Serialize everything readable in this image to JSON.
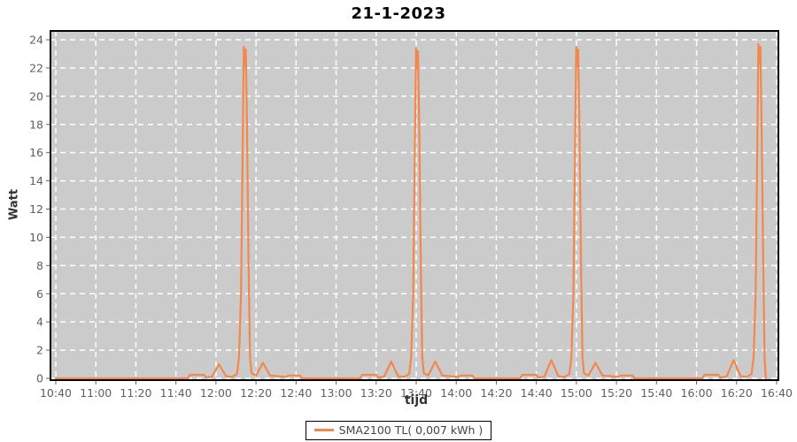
{
  "chart_data": {
    "type": "line",
    "title": "21-1-2023",
    "xlabel": "tijd",
    "ylabel": "Watt",
    "ylim": [
      0,
      24
    ],
    "y_ticks": [
      0,
      2,
      4,
      6,
      8,
      10,
      12,
      14,
      16,
      18,
      20,
      22,
      24
    ],
    "x_range_minutes": [
      640,
      1000
    ],
    "x_ticks": [
      {
        "label": "10:40",
        "t": 640
      },
      {
        "label": "11:00",
        "t": 660
      },
      {
        "label": "11:20",
        "t": 680
      },
      {
        "label": "11:40",
        "t": 700
      },
      {
        "label": "12:00",
        "t": 720
      },
      {
        "label": "12:20",
        "t": 740
      },
      {
        "label": "12:40",
        "t": 760
      },
      {
        "label": "13:00",
        "t": 780
      },
      {
        "label": "13:20",
        "t": 800
      },
      {
        "label": "13:40",
        "t": 820
      },
      {
        "label": "14:00",
        "t": 840
      },
      {
        "label": "14:20",
        "t": 860
      },
      {
        "label": "14:40",
        "t": 880
      },
      {
        "label": "15:00",
        "t": 900
      },
      {
        "label": "15:20",
        "t": 920
      },
      {
        "label": "15:40",
        "t": 940
      },
      {
        "label": "16:00",
        "t": 960
      },
      {
        "label": "16:20",
        "t": 980
      },
      {
        "label": "16:40",
        "t": 1000
      }
    ],
    "grid": true,
    "legend": {
      "label": "SMA2100 TL( 0,007 kWh )",
      "position": "bottom-center"
    },
    "colors": {
      "series": "#F4874D",
      "plot_background": "#CBCBCB",
      "gridline": "#FFFFFF",
      "plot_border": "#000000",
      "tick": "#666666",
      "tick_label": "#5F5F5F",
      "axis_title": "#333333",
      "title": "#000000",
      "legend_text": "#444444",
      "legend_border": "#000000",
      "page_background": "#FFFFFF"
    },
    "series": [
      {
        "name": "SMA2100 TL( 0,007 kWh )",
        "points": [
          [
            640,
            0
          ],
          [
            706,
            0
          ],
          [
            707,
            0.25
          ],
          [
            714,
            0.25
          ],
          [
            715,
            0.06
          ],
          [
            718,
            0.12
          ],
          [
            721.5,
            1.0
          ],
          [
            725,
            0.15
          ],
          [
            728,
            0.1
          ],
          [
            730.5,
            0.3
          ],
          [
            731.5,
            1.5
          ],
          [
            732.5,
            6
          ],
          [
            733.3,
            16
          ],
          [
            733.9,
            23.5
          ],
          [
            734.4,
            22.2
          ],
          [
            734.9,
            23.3
          ],
          [
            735.5,
            18
          ],
          [
            736.3,
            8
          ],
          [
            737,
            1.5
          ],
          [
            737.8,
            0.35
          ],
          [
            740,
            0.2
          ],
          [
            743.5,
            1.1
          ],
          [
            747,
            0.2
          ],
          [
            755,
            0.1
          ],
          [
            756,
            0.2
          ],
          [
            762,
            0.2
          ],
          [
            763,
            0
          ],
          [
            792,
            0
          ],
          [
            793,
            0.25
          ],
          [
            800,
            0.25
          ],
          [
            801,
            0.06
          ],
          [
            804,
            0.12
          ],
          [
            807.5,
            1.2
          ],
          [
            811,
            0.15
          ],
          [
            814,
            0.1
          ],
          [
            816.5,
            0.3
          ],
          [
            817.5,
            1.5
          ],
          [
            818.5,
            6
          ],
          [
            819.3,
            16
          ],
          [
            819.9,
            23.4
          ],
          [
            820.4,
            22.0
          ],
          [
            820.9,
            23.2
          ],
          [
            821.5,
            18
          ],
          [
            822.3,
            8
          ],
          [
            823,
            1.5
          ],
          [
            823.8,
            0.35
          ],
          [
            826,
            0.2
          ],
          [
            829.5,
            1.2
          ],
          [
            833,
            0.2
          ],
          [
            841,
            0.1
          ],
          [
            842,
            0.2
          ],
          [
            848,
            0.2
          ],
          [
            849,
            0
          ],
          [
            872,
            0
          ],
          [
            873,
            0.25
          ],
          [
            880,
            0.25
          ],
          [
            881,
            0.06
          ],
          [
            884,
            0.12
          ],
          [
            887.5,
            1.3
          ],
          [
            891,
            0.15
          ],
          [
            894,
            0.1
          ],
          [
            896.5,
            0.3
          ],
          [
            897.5,
            1.5
          ],
          [
            898.5,
            6
          ],
          [
            899.3,
            16
          ],
          [
            899.9,
            23.5
          ],
          [
            900.4,
            22.1
          ],
          [
            900.9,
            23.3
          ],
          [
            901.5,
            18
          ],
          [
            902.3,
            8
          ],
          [
            903,
            1.5
          ],
          [
            903.8,
            0.35
          ],
          [
            906,
            0.2
          ],
          [
            909.5,
            1.1
          ],
          [
            913,
            0.2
          ],
          [
            921,
            0.1
          ],
          [
            922,
            0.2
          ],
          [
            928,
            0.2
          ],
          [
            929,
            0
          ],
          [
            963,
            0
          ],
          [
            964,
            0.25
          ],
          [
            971,
            0.25
          ],
          [
            972,
            0.06
          ],
          [
            975,
            0.12
          ],
          [
            978.5,
            1.3
          ],
          [
            982,
            0.15
          ],
          [
            985,
            0.1
          ],
          [
            987.5,
            0.3
          ],
          [
            988.5,
            1.5
          ],
          [
            989.5,
            6
          ],
          [
            990.3,
            16
          ],
          [
            990.9,
            23.7
          ],
          [
            991.4,
            22.3
          ],
          [
            991.9,
            23.5
          ],
          [
            992.5,
            18
          ],
          [
            993.3,
            8
          ],
          [
            994,
            1.5
          ],
          [
            994.6,
            0
          ]
        ]
      }
    ]
  }
}
